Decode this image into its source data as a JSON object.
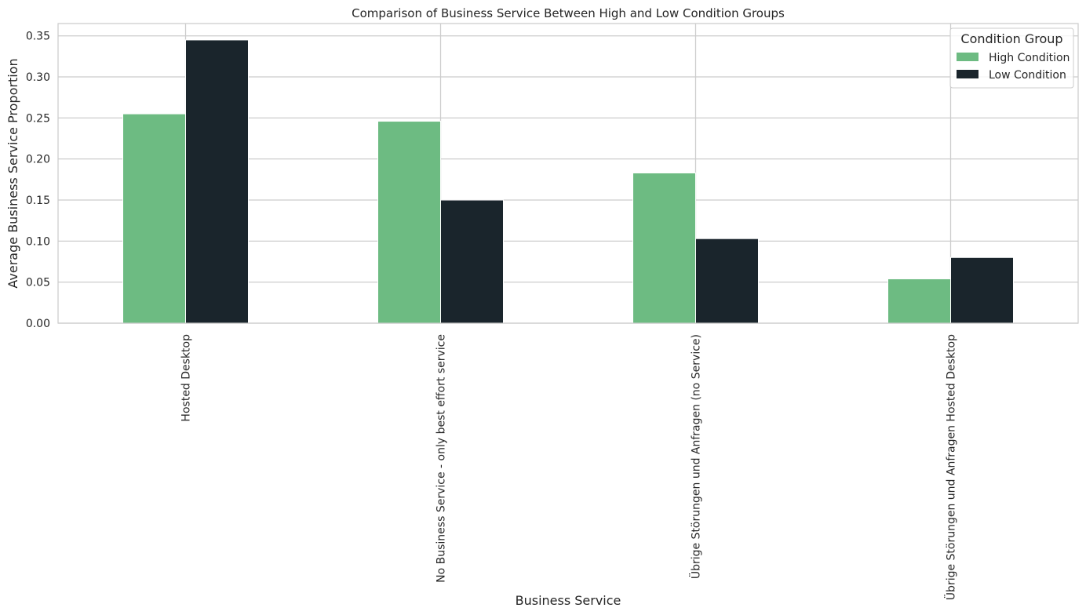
{
  "chart_data": {
    "type": "bar",
    "title": "Comparison of Business Service Between High and Low Condition Groups",
    "xlabel": "Business Service",
    "ylabel": "Average Business Service Proportion",
    "categories": [
      "Hosted Desktop",
      "No Business Service - only best effort service",
      "Übrige Störungen und Anfragen (no Service)",
      "Übrige Störungen und Anfragen Hosted Desktop"
    ],
    "series": [
      {
        "name": "High Condition",
        "color": "#6dbb82",
        "values": [
          0.255,
          0.246,
          0.183,
          0.054
        ]
      },
      {
        "name": "Low Condition",
        "color": "#1a252c",
        "values": [
          0.345,
          0.15,
          0.103,
          0.08
        ]
      }
    ],
    "ylim": [
      0,
      0.365
    ],
    "yticks": [
      "0.00",
      "0.05",
      "0.10",
      "0.15",
      "0.20",
      "0.25",
      "0.30",
      "0.35"
    ],
    "grid": true,
    "legend": {
      "title": "Condition Group",
      "position": "top-right"
    }
  }
}
